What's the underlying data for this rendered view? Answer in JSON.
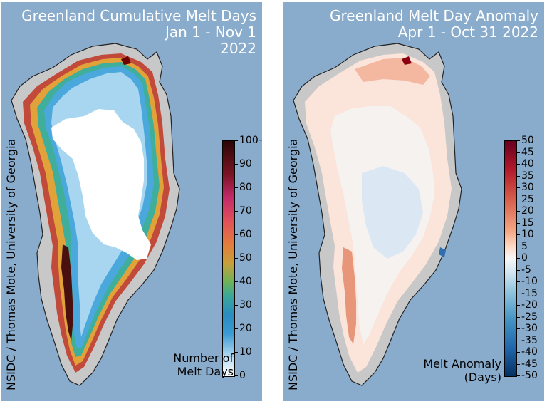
{
  "left_panel": {
    "title_lines": [
      "Greenland Cumulative Melt Days",
      "Jan 1 - Nov 1",
      "2022"
    ],
    "credit": "NSIDC / Thomas Mote, University of Georgia",
    "colorbar_ticks": [
      "100+",
      "90",
      "80",
      "70",
      "60",
      "50",
      "40",
      "30",
      "20",
      "10",
      "0"
    ],
    "colorbar_label_lines": [
      "Number of",
      "Melt Days"
    ],
    "colors": {
      "ocean": "#8aaccc",
      "land": "#c8c8c8",
      "coast": "#222222",
      "low": "#ffffff",
      "mid": "#3a9ad0",
      "high": "#2a0a0a"
    }
  },
  "right_panel": {
    "title_lines": [
      "Greenland Melt Day Anomaly",
      "Apr 1 - Oct 31 2022"
    ],
    "credit": "NSIDC / Thomas Mote, University of Georgia",
    "colorbar_ticks": [
      "50",
      "45",
      "40",
      "35",
      "30",
      "25",
      "20",
      "15",
      "10",
      "5",
      "0",
      "-5",
      "-10",
      "-15",
      "-20",
      "-25",
      "-30",
      "-35",
      "-40",
      "-45",
      "-50"
    ],
    "colorbar_label_lines": [
      "Melt Anomaly",
      "(Days)"
    ],
    "colors": {
      "ocean": "#8aaccc",
      "land": "#c8c8c8",
      "positive": "#b2182b",
      "neutral": "#f7f7f7",
      "negative": "#2166ac"
    }
  }
}
